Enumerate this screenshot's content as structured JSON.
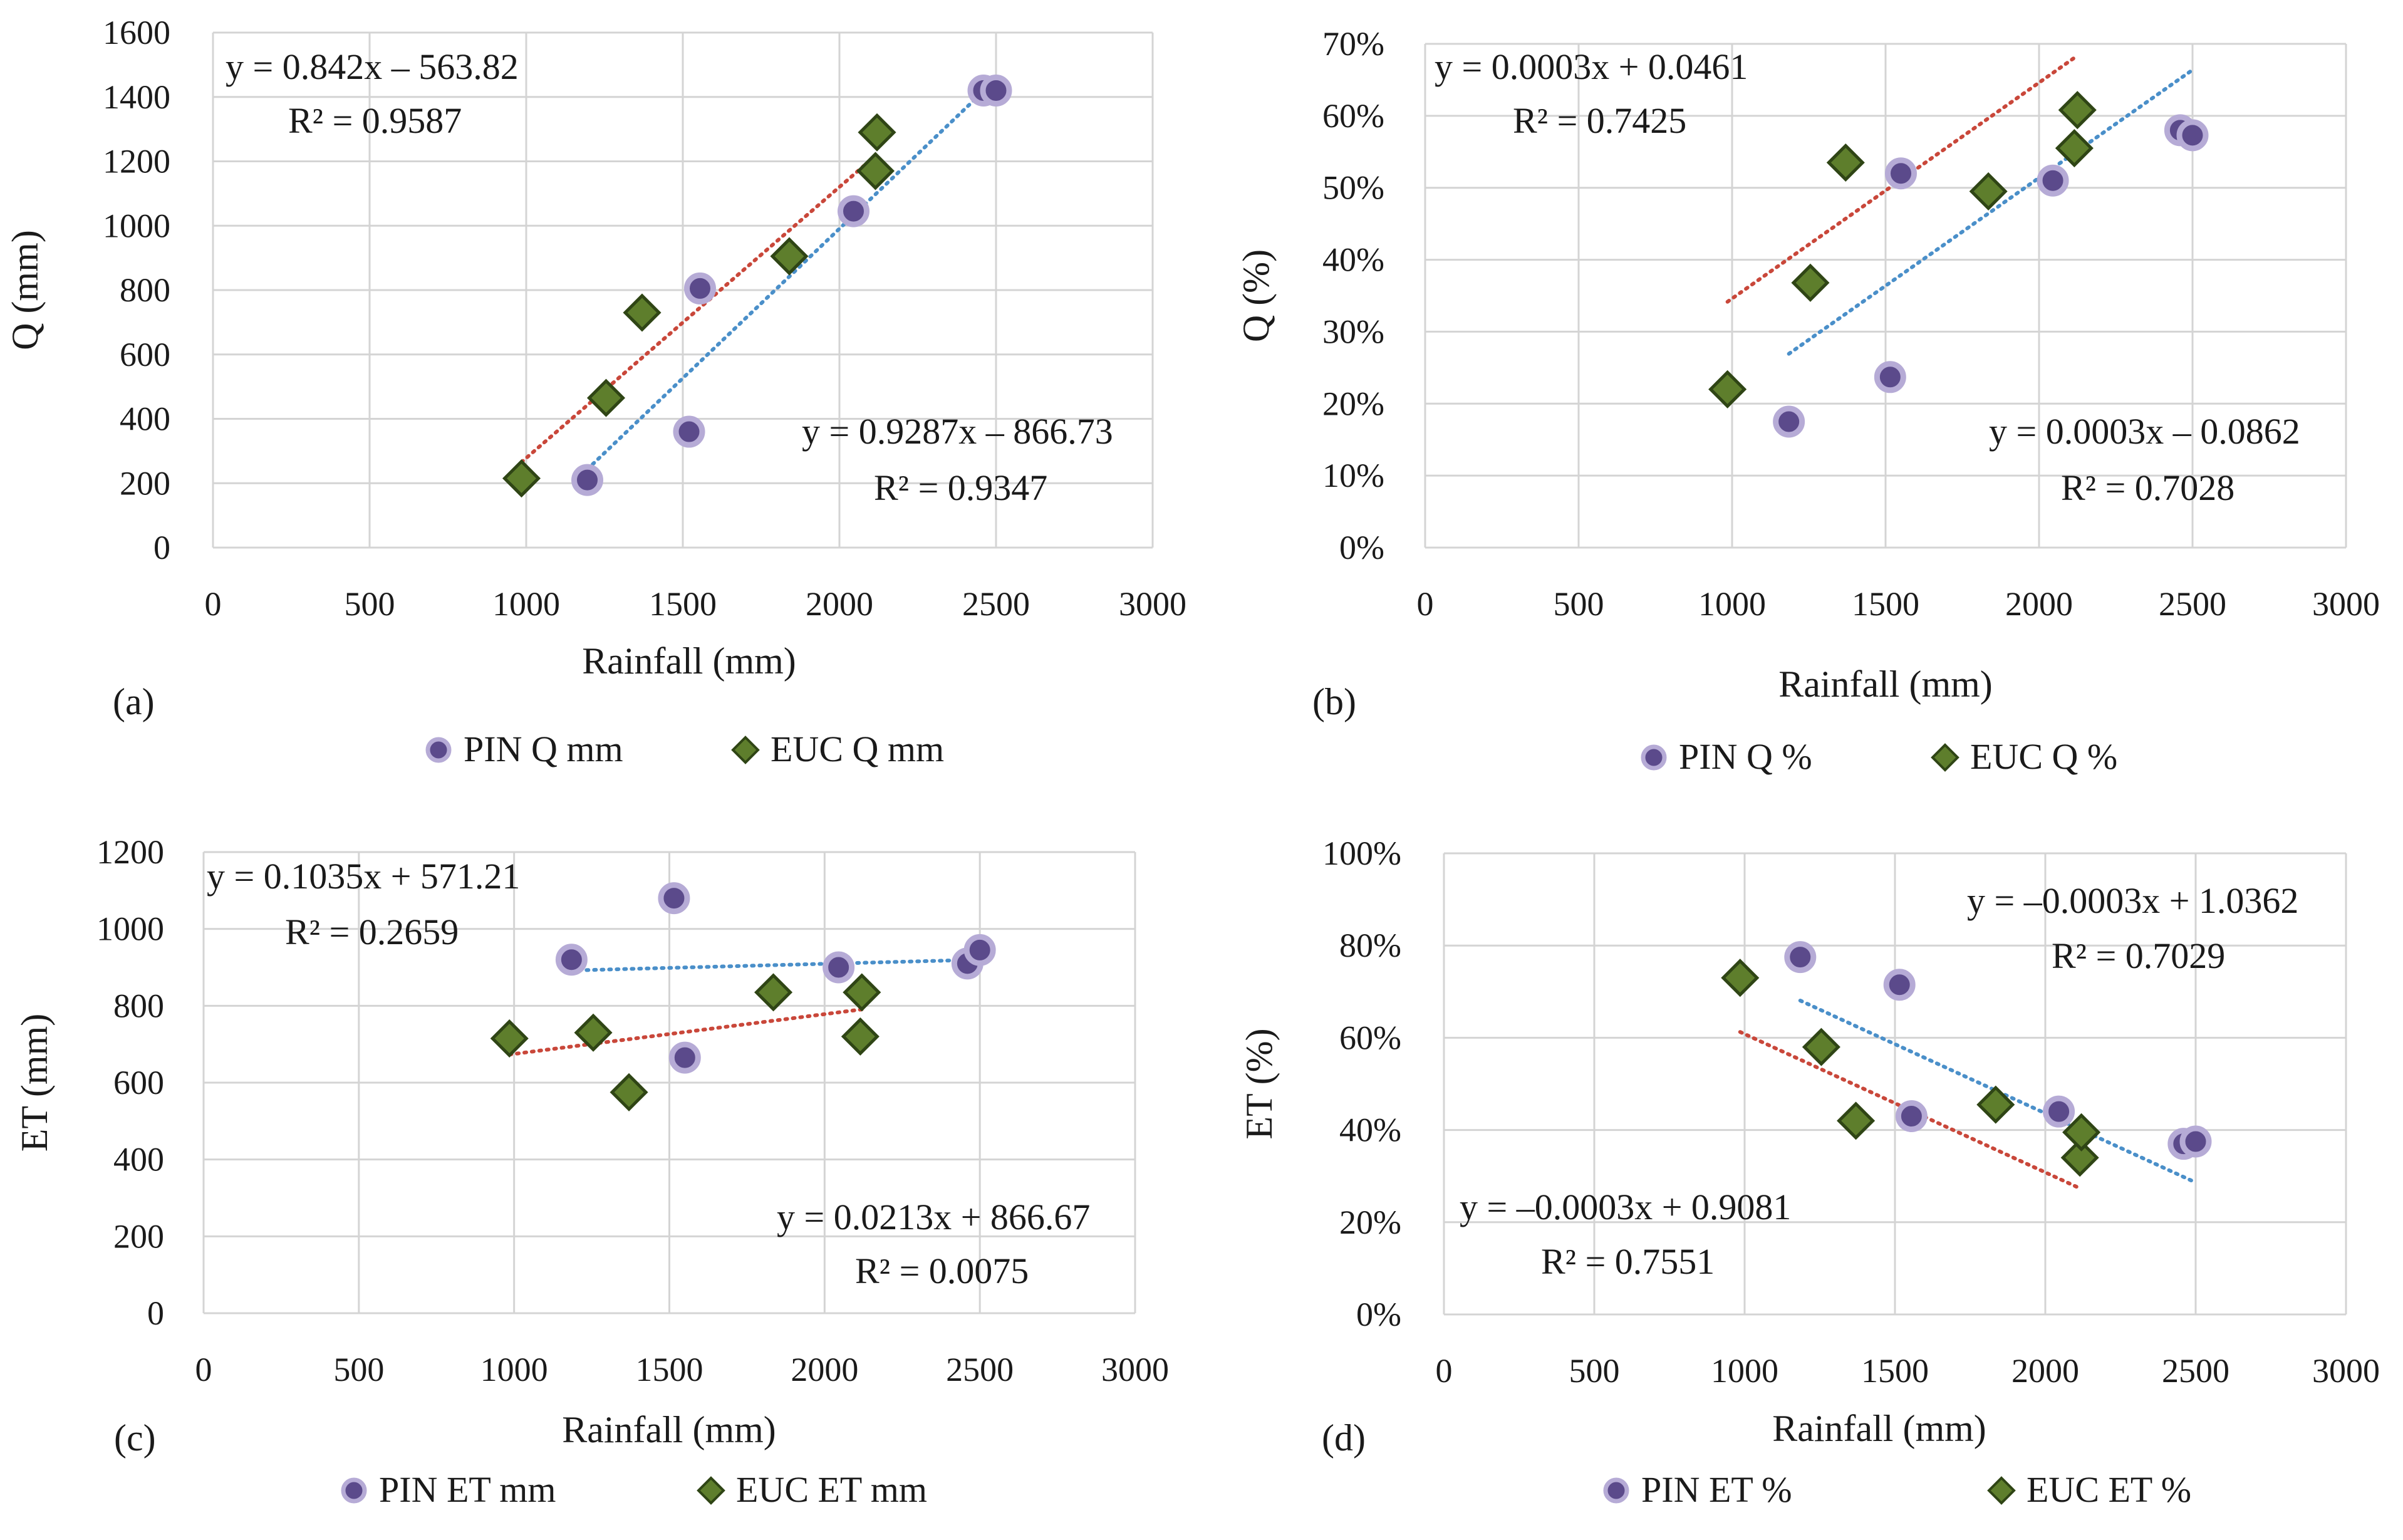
{
  "colors": {
    "pin_marker": "#5b4a8b",
    "pin_marker_stroke": "#b6abd6",
    "euc_marker": "#5e7e2c",
    "euc_marker_stroke": "#2f4515",
    "pin_trend": "#4a8fc9",
    "euc_trend": "#c9473a",
    "grid": "#d4d4d4"
  },
  "chart_data": [
    {
      "type": "scatter",
      "panel_label": "(a)",
      "xlabel": "Rainfall (mm)",
      "ylabel": "Q (mm)",
      "xlim": [
        0,
        3000
      ],
      "ylim": [
        0,
        1600
      ],
      "x_ticks": [
        "0",
        "500",
        "1000",
        "1500",
        "2000",
        "2500",
        "3000"
      ],
      "y_ticks": [
        "0",
        "200",
        "400",
        "600",
        "800",
        "1000",
        "1200",
        "1400",
        "1600"
      ],
      "series": [
        {
          "name": "PIN Q mm",
          "marker": "circle",
          "x": [
            1195,
            1520,
            1555,
            2045,
            2460,
            2500
          ],
          "y": [
            210,
            360,
            805,
            1045,
            1420,
            1420
          ]
        },
        {
          "name": "EUC Q mm",
          "marker": "diamond",
          "x": [
            985,
            1255,
            1370,
            1840,
            2115,
            2120
          ],
          "y": [
            215,
            465,
            730,
            905,
            1170,
            1290
          ]
        }
      ],
      "trendlines": [
        {
          "series": "PIN Q mm",
          "x_range": [
            1195,
            2500
          ],
          "slope": 0.9287,
          "intercept": -866.73
        },
        {
          "series": "EUC Q mm",
          "x_range": [
            985,
            2120
          ],
          "slope": 0.842,
          "intercept": -563.82
        }
      ],
      "equations": [
        {
          "for": "EUC Q mm",
          "eq": "y = 0.842x – 563.82",
          "r2": "R² = 0.9587",
          "position": "top-left"
        },
        {
          "for": "PIN Q mm",
          "eq": "y = 0.9287x – 866.73",
          "r2": "R² = 0.9347",
          "position": "bottom-right"
        }
      ],
      "legend": [
        "PIN Q mm",
        "EUC Q mm"
      ]
    },
    {
      "type": "scatter",
      "panel_label": "(b)",
      "xlabel": "Rainfall (mm)",
      "ylabel": "Q (%)",
      "xlim": [
        0,
        3000
      ],
      "ylim": [
        0,
        0.7
      ],
      "x_ticks": [
        "0",
        "500",
        "1000",
        "1500",
        "2000",
        "2500",
        "3000"
      ],
      "y_ticks": [
        "0%",
        "10%",
        "20%",
        "30%",
        "40%",
        "50%",
        "60%",
        "70%"
      ],
      "series": [
        {
          "name": "PIN Q %",
          "marker": "circle",
          "x": [
            1185,
            1515,
            1550,
            2045,
            2460,
            2500
          ],
          "y": [
            0.175,
            0.237,
            0.52,
            0.51,
            0.58,
            0.573
          ]
        },
        {
          "name": "EUC Q %",
          "marker": "diamond",
          "x": [
            985,
            1255,
            1370,
            1835,
            2115,
            2125
          ],
          "y": [
            0.22,
            0.368,
            0.535,
            0.495,
            0.555,
            0.608
          ]
        }
      ],
      "trendlines": [
        {
          "series": "PIN Q %",
          "x_range": [
            1185,
            2500
          ],
          "slope": 0.0003,
          "intercept": -0.0862
        },
        {
          "series": "EUC Q %",
          "x_range": [
            985,
            2125
          ],
          "slope": 0.0003,
          "intercept": 0.0461
        }
      ],
      "equations": [
        {
          "for": "EUC Q %",
          "eq": "y = 0.0003x + 0.0461",
          "r2": "R² = 0.7425",
          "position": "top-left"
        },
        {
          "for": "PIN Q %",
          "eq": "y = 0.0003x – 0.0862",
          "r2": "R² = 0.7028",
          "position": "bottom-right"
        }
      ],
      "legend": [
        "PIN Q %",
        "EUC Q %"
      ]
    },
    {
      "type": "scatter",
      "panel_label": "(c)",
      "xlabel": "Rainfall (mm)",
      "ylabel": "ET (mm)",
      "xlim": [
        0,
        3000
      ],
      "ylim": [
        0,
        1200
      ],
      "x_ticks": [
        "0",
        "500",
        "1000",
        "1500",
        "2000",
        "2500",
        "3000"
      ],
      "y_ticks": [
        "0",
        "200",
        "400",
        "600",
        "800",
        "1000",
        "1200"
      ],
      "series": [
        {
          "name": "PIN ET mm",
          "marker": "circle",
          "x": [
            1185,
            1515,
            1550,
            2045,
            2460,
            2500
          ],
          "y": [
            920,
            1080,
            665,
            900,
            910,
            945
          ]
        },
        {
          "name": "EUC ET mm",
          "marker": "diamond",
          "x": [
            985,
            1255,
            1370,
            1835,
            2115,
            2120
          ],
          "y": [
            715,
            730,
            575,
            835,
            720,
            835
          ]
        }
      ],
      "trendlines": [
        {
          "series": "PIN ET mm",
          "x_range": [
            1185,
            2500
          ],
          "slope": 0.0213,
          "intercept": 866.67
        },
        {
          "series": "EUC ET mm",
          "x_range": [
            985,
            2120
          ],
          "slope": 0.1035,
          "intercept": 571.21
        }
      ],
      "equations": [
        {
          "for": "EUC ET mm",
          "eq": "y = 0.1035x + 571.21",
          "r2": "R² = 0.2659",
          "position": "top-left"
        },
        {
          "for": "PIN ET mm",
          "eq": "y = 0.0213x + 866.67",
          "r2": "R² = 0.0075",
          "position": "bottom-right"
        }
      ],
      "legend": [
        "PIN ET mm",
        "EUC ET mm"
      ]
    },
    {
      "type": "scatter",
      "panel_label": "(d)",
      "xlabel": "Rainfall (mm)",
      "ylabel": "ET (%)",
      "xlim": [
        0,
        3000
      ],
      "ylim": [
        0,
        1.0
      ],
      "x_ticks": [
        "0",
        "500",
        "1000",
        "1500",
        "2000",
        "2500",
        "3000"
      ],
      "y_ticks": [
        "0%",
        "20%",
        "40%",
        "60%",
        "80%",
        "100%"
      ],
      "series": [
        {
          "name": "PIN ET %",
          "marker": "circle",
          "x": [
            1185,
            1515,
            1555,
            2045,
            2460,
            2500
          ],
          "y": [
            0.775,
            0.715,
            0.43,
            0.44,
            0.37,
            0.375
          ]
        },
        {
          "name": "EUC ET %",
          "marker": "diamond",
          "x": [
            985,
            1255,
            1370,
            1835,
            2115,
            2120
          ],
          "y": [
            0.73,
            0.58,
            0.42,
            0.455,
            0.34,
            0.395
          ]
        }
      ],
      "trendlines": [
        {
          "series": "PIN ET %",
          "x_range": [
            1185,
            2500
          ],
          "slope": -0.0003,
          "intercept": 1.0362
        },
        {
          "series": "EUC ET %",
          "x_range": [
            985,
            2120
          ],
          "slope": -0.0003,
          "intercept": 0.9081
        }
      ],
      "equations": [
        {
          "for": "PIN ET %",
          "eq": "y = –0.0003x + 1.0362",
          "r2": "R² = 0.7029",
          "position": "top-right"
        },
        {
          "for": "EUC ET %",
          "eq": "y = –0.0003x + 0.9081",
          "r2": "R² = 0.7551",
          "position": "bottom-left"
        }
      ],
      "legend": [
        "PIN ET %",
        "EUC ET %"
      ]
    }
  ]
}
